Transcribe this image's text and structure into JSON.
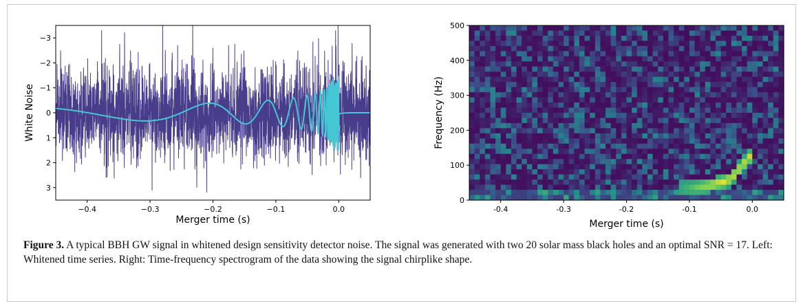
{
  "chart_data": [
    {
      "type": "line",
      "xlabel": "Merger time (s)",
      "ylabel": "White Noise",
      "xlim": [
        -0.45,
        0.05
      ],
      "ylim": [
        3.5,
        -3.5
      ],
      "y_inverted": true,
      "x_ticks": [
        -0.4,
        -0.3,
        -0.2,
        -0.1,
        0.0
      ],
      "x_tick_labels": [
        "−0.4",
        "−0.3",
        "−0.2",
        "−0.1",
        "0.0"
      ],
      "y_ticks": [
        -3,
        -2,
        -1,
        0,
        1,
        2,
        3
      ],
      "y_tick_labels": [
        "−3",
        "−2",
        "−1",
        "0",
        "1",
        "2",
        "3"
      ],
      "series": [
        {
          "role": "whitened noise",
          "color": "#483d8b",
          "style": "dense noise trace",
          "x": [
            -0.28,
            -0.005,
            -0.37,
            -0.21,
            -0.2,
            -0.02
          ],
          "y": [
            -3.5,
            -3.3,
            2.6,
            3.2,
            -2.6,
            2.1
          ]
        },
        {
          "role": "signal chirp",
          "color": "#45c7d6",
          "x": [
            -0.45,
            -0.4,
            -0.35,
            -0.3,
            -0.25,
            -0.2,
            -0.15,
            -0.1,
            -0.05,
            -0.02,
            0.0,
            0.05
          ],
          "y": [
            0.2,
            0.25,
            0.1,
            -0.3,
            0.4,
            -0.5,
            0.6,
            -0.6,
            0.8,
            -1.2,
            0.0,
            0.0
          ]
        }
      ]
    },
    {
      "type": "heatmap",
      "xlabel": "Merger time (s)",
      "ylabel": "Frequency (Hz)",
      "xlim": [
        -0.45,
        0.05
      ],
      "ylim": [
        0,
        500
      ],
      "x_ticks": [
        -0.4,
        -0.3,
        -0.2,
        -0.1,
        0.0
      ],
      "x_tick_labels": [
        "-0.4",
        "-0.3",
        "-0.2",
        "-0.1",
        "0.0"
      ],
      "y_ticks": [
        0,
        100,
        200,
        300,
        400,
        500
      ],
      "y_tick_labels": [
        "0",
        "100",
        "200",
        "300",
        "400",
        "500"
      ],
      "colormap": [
        "#440154",
        "#3b528b",
        "#21918c",
        "#5ec962",
        "#fde725"
      ],
      "chirp_track": {
        "t": [
          -0.12,
          -0.09,
          -0.06,
          -0.04,
          -0.03,
          -0.02,
          -0.01,
          0.0
        ],
        "f": [
          30,
          35,
          45,
          55,
          70,
          90,
          110,
          130
        ]
      }
    }
  ],
  "caption": {
    "label": "Figure 3.",
    "text": " A typical BBH GW signal in whitened design sensitivity detector noise. The signal was generated with two 20 solar mass black holes and an optimal SNR = 17. Left: Whitened time series. Right: Time-frequency spectrogram of the data showing the signal chirplike shape."
  }
}
